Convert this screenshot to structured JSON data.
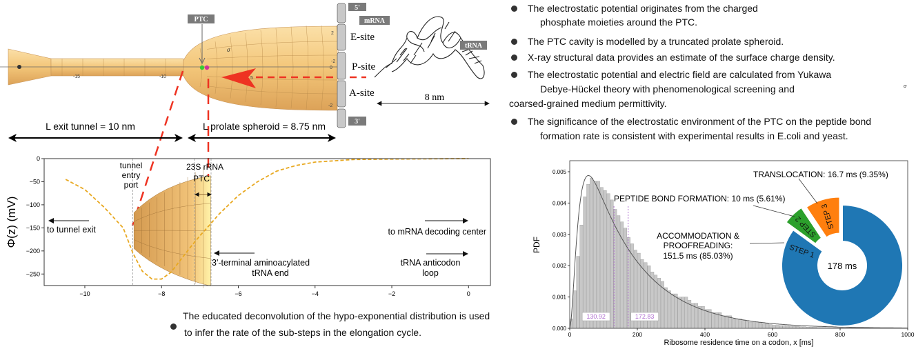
{
  "diagram": {
    "ptc_label": "PTC",
    "mrna_label": "mRNA",
    "five_prime": "5'",
    "three_prime": "3'",
    "e_site": "E-site",
    "p_site": "P-site",
    "a_site": "A-site",
    "trna_label": "tRNA",
    "trna_span": "8 nm",
    "sigma": "σ",
    "axis_ticks": [
      "-15",
      "-10",
      "5",
      "2",
      "0",
      "-2",
      "-2"
    ],
    "exit_tunnel_length": "L exit tunnel = 10 nm",
    "spheroid_length": "L prolate spheroid = 8.75 nm",
    "colors": {
      "shell": "#f0c070",
      "arrow": "#ee3322",
      "ptc_box": "#777777"
    }
  },
  "bullets_top": [
    {
      "lines": [
        "The electrostatic potential originates from the charged",
        "phosphate moieties around the PTC."
      ]
    },
    {
      "lines": [
        "The PTC cavity is modelled by a truncated prolate spheroid."
      ]
    },
    {
      "lines": [
        "X-ray structural data provides an estimate of the surface charge density."
      ]
    },
    {
      "lines": [
        "The electrostatic potential and electric field are calculated from Yukawa",
        "Debye-Hückel theory with phenomenological screening and",
        "coarsed-grained medium permittivity."
      ]
    },
    {
      "lines": [
        "The significance of the electrostatic environment of the PTC on the peptide bond",
        "formation rate is consistent with experimental results in E.coli and yeast."
      ]
    }
  ],
  "stray_sigma": "σ",
  "bullet_bottom": {
    "lines": [
      "The educated deconvolution of the hypo-exponential distribution is used",
      "to infer the rate of the sub-steps in the elongation cycle."
    ]
  },
  "chart_data": [
    {
      "type": "line",
      "ylabel": "Φ(z) (mV)",
      "xlabel": "",
      "xlim": [
        -11.06,
        0.57
      ],
      "ylim": [
        -275,
        0
      ],
      "xticks": [
        -10,
        -8,
        -6,
        -4,
        -2,
        0
      ],
      "xtick_labels": [
        "−10",
        "−8",
        "−6",
        "−4",
        "−2",
        "0"
      ],
      "yticks": [
        0,
        -50,
        -100,
        -150,
        -200,
        -250
      ],
      "ytick_labels": [
        "0",
        "−50",
        "−100",
        "−150",
        "−200",
        "−250"
      ],
      "grid": false,
      "series": [
        {
          "style": "dashed",
          "color": "#e8a820",
          "x": [
            -10.5,
            -10,
            -9.5,
            -9,
            -8.75,
            -8.5,
            -8.25,
            -8,
            -7.75,
            -7.5,
            -7.25,
            -7,
            -6.75,
            -6.5,
            -6.25,
            -6,
            -5.5,
            -5,
            -4.5,
            -4,
            -3,
            -2,
            -1,
            0
          ],
          "y": [
            -45,
            -67,
            -105,
            -150,
            -204,
            -244,
            -261,
            -261,
            -246,
            -219,
            -192,
            -167,
            -144,
            -120,
            -100,
            -80,
            -50,
            -27,
            -15,
            -7.5,
            -2,
            -1,
            -0.5,
            0
          ]
        }
      ],
      "vlines": [
        -8.75,
        -7.15,
        -6.71
      ],
      "annotations": {
        "entry_port": [
          "tunnel",
          "entry",
          "port"
        ],
        "ptc": [
          "23S rRNA",
          "PTC"
        ],
        "tunnel_exit": "to tunnel exit",
        "decoding_center": "to mRNA decoding center",
        "trna_end": [
          "3'-terminal aminoacylated",
          "tRNA end"
        ],
        "anticodon": [
          "tRNA anticodon",
          "loop"
        ]
      }
    },
    {
      "type": "bar",
      "xlabel": "Ribosome residence time on a codon, x [ms]",
      "ylabel": "PDF",
      "xlim": [
        0,
        1000
      ],
      "ylim": [
        0,
        0.00535
      ],
      "xticks": [
        0,
        200,
        400,
        600,
        800,
        1000
      ],
      "yticks": [
        0,
        0.001,
        0.002,
        0.003,
        0.004,
        0.005
      ],
      "ytick_labels": [
        "0.000",
        "0.001",
        "0.002",
        "0.003",
        "0.004",
        "0.005"
      ],
      "bin_width": 10,
      "bin_start": 0,
      "values": [
        0.0003,
        0.0012,
        0.0023,
        0.0033,
        0.0042,
        0.0046,
        0.0048,
        0.0047,
        0.0047,
        0.0045,
        0.0044,
        0.0043,
        0.0041,
        0.0038,
        0.0036,
        0.0034,
        0.0032,
        0.0029,
        0.0027,
        0.0025,
        0.0024,
        0.0022,
        0.0021,
        0.002,
        0.0018,
        0.0017,
        0.0016,
        0.0015,
        0.0013,
        0.0012,
        0.0011,
        0.0011,
        0.001,
        0.001,
        0.001,
        0.0009,
        0.0008,
        0.0008,
        0.0007,
        0.0007,
        0.0006,
        0.0006,
        0.0005,
        0.0005,
        0.0005,
        0.0004,
        0.0004,
        0.0004,
        0.0003,
        0.0003,
        0.0003,
        0.00025,
        0.00025,
        0.0002,
        0.0002,
        0.0002,
        0.00018,
        0.00015,
        0.00015,
        0.00012,
        0.0001,
        0.0001,
        9e-05,
        9e-05,
        8e-05,
        7e-05,
        6e-05,
        6e-05,
        5e-05,
        5e-05,
        4e-05,
        4e-05,
        4e-05,
        3e-05,
        3e-05,
        3e-05,
        2e-05,
        2e-05,
        2e-05,
        2e-05,
        2e-05,
        1e-05,
        1e-05,
        1e-05,
        1e-05,
        1e-05,
        1e-05,
        1e-05,
        1e-05,
        0,
        0,
        0,
        0,
        0,
        0,
        0,
        0,
        0,
        0,
        0
      ],
      "bar_color": "#c8c8c8",
      "fit_curve": "hypo-exponential",
      "markers": [
        {
          "x": 130.92,
          "label": "130.92"
        },
        {
          "x": 172.83,
          "label": "172.83"
        }
      ],
      "marker_color": "#b070d0"
    },
    {
      "type": "pie",
      "donut": true,
      "center_label": "178 ms",
      "slices": [
        {
          "step": "STEP 1",
          "ms": 151.5,
          "percent": 85.03,
          "color": "#1f77b4",
          "label": [
            "ACCOMMODATION &",
            "PROOFREADING:",
            "151.5 ms (85.03%)"
          ]
        },
        {
          "step": "STEP 2",
          "ms": 10,
          "percent": 5.61,
          "color": "#2ca02c",
          "label": [
            "PEPTIDE BOND FORMATION: 10 ms (5.61%)"
          ]
        },
        {
          "step": "STEP 3",
          "ms": 16.7,
          "percent": 9.35,
          "color": "#ff7f0e",
          "label": [
            "TRANSLOCATION: 16.7 ms (9.35%)"
          ]
        }
      ]
    }
  ]
}
